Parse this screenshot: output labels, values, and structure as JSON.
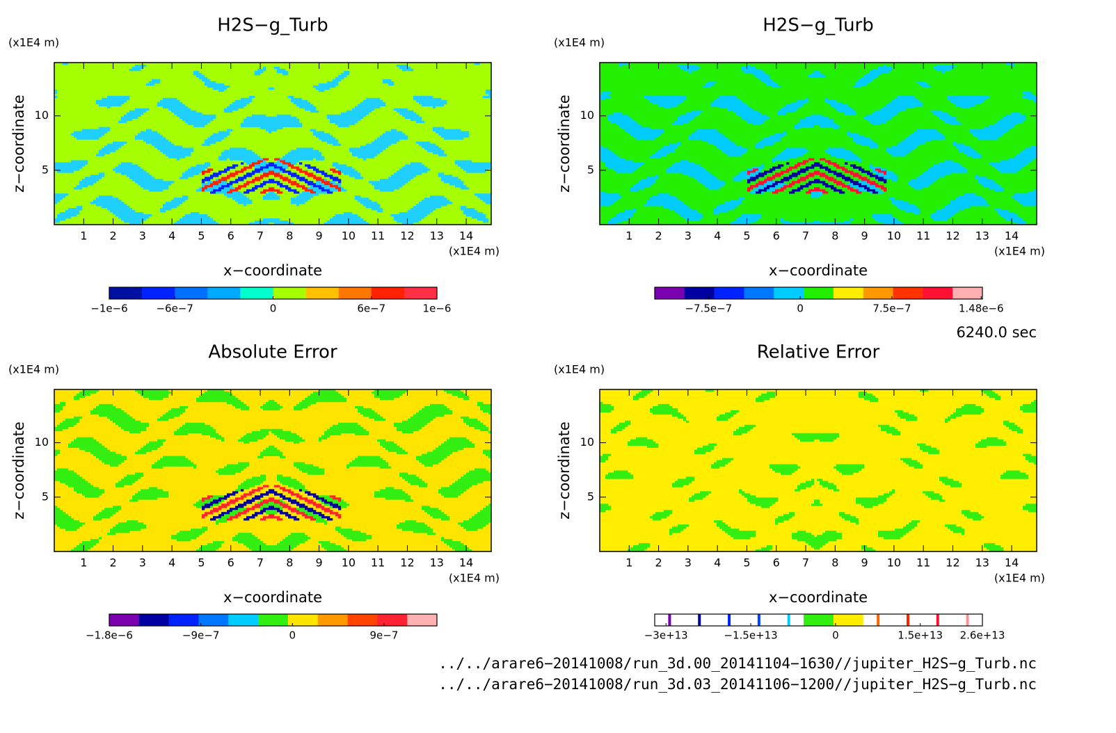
{
  "chart_data": [
    {
      "type": "contour",
      "title": "H2S−g_Turb",
      "xlabel": "x−coordinate",
      "ylabel": "z−coordinate",
      "xunit": "(x1E4 m)",
      "yunit": "(x1E4 m)",
      "xlim": [
        0,
        14.85
      ],
      "ylim": [
        0,
        14.9
      ],
      "xticks": [
        1,
        2,
        3,
        4,
        5,
        6,
        7,
        8,
        9,
        10,
        11,
        12,
        13,
        14
      ],
      "yticks": [
        5,
        10
      ],
      "background": "#a5ff00",
      "pattern": "#1fd0ff",
      "colorbar": {
        "lim": [
          -1e-06,
          1e-06
        ],
        "colors": [
          "#0010a0",
          "#0022ff",
          "#0070ff",
          "#00aaff",
          "#00ffcc",
          "#a5ff00",
          "#ffc000",
          "#ff7700",
          "#ff2200",
          "#ff3044"
        ],
        "ticks": [
          {
            "value": -1e-06,
            "label": "−1e−6"
          },
          {
            "value": -6e-07,
            "label": "−6e−7"
          },
          0,
          {
            "value": 6e-07,
            "label": "6e−7"
          },
          {
            "value": 1e-06,
            "label": "1e−6"
          }
        ]
      }
    },
    {
      "type": "contour",
      "title": "H2S−g_Turb",
      "xlabel": "x−coordinate",
      "ylabel": "z−coordinate",
      "xunit": "(x1E4 m)",
      "yunit": "(x1E4 m)",
      "xlim": [
        0,
        14.85
      ],
      "ylim": [
        0,
        14.9
      ],
      "xticks": [
        1,
        2,
        3,
        4,
        5,
        6,
        7,
        8,
        9,
        10,
        11,
        12,
        13,
        14
      ],
      "yticks": [
        5,
        10
      ],
      "background": "#22f000",
      "pattern": "#00ccff",
      "colorbar": {
        "lim": [
          -1.19e-06,
          1.49e-06
        ],
        "colors": [
          "#7a00b0",
          "#0000a0",
          "#0022ff",
          "#0077ff",
          "#00ccff",
          "#22ee00",
          "#ffee00",
          "#ff9900",
          "#ff3300",
          "#ff1133",
          "#ffb0b0"
        ],
        "ticks": [
          {
            "value": -7.5e-07,
            "label": "−7.5e−7"
          },
          0,
          {
            "value": 7.5e-07,
            "label": "7.5e−7"
          },
          {
            "value": 1.48e-06,
            "label": "1.48e−6"
          }
        ]
      }
    },
    {
      "type": "contour",
      "title": "Absolute Error",
      "xlabel": "x−coordinate",
      "ylabel": "z−coordinate",
      "xunit": "(x1E4 m)",
      "yunit": "(x1E4 m)",
      "xlim": [
        0,
        14.85
      ],
      "ylim": [
        0,
        14.9
      ],
      "xticks": [
        1,
        2,
        3,
        4,
        5,
        6,
        7,
        8,
        9,
        10,
        11,
        12,
        13,
        14
      ],
      "yticks": [
        5,
        10
      ],
      "background": "#ffe400",
      "pattern": "#33ee11",
      "colorbar": {
        "lim": [
          -1.8e-06,
          1.42e-06
        ],
        "colors": [
          "#7a00b0",
          "#0000a0",
          "#0022ff",
          "#0077ff",
          "#00ccff",
          "#33ee11",
          "#ffe400",
          "#ff9900",
          "#ff4400",
          "#ff2233",
          "#ffb0b0"
        ],
        "ticks": [
          {
            "value": -1.8e-06,
            "label": "−1.8e−6"
          },
          {
            "value": -9e-07,
            "label": "−9e−7"
          },
          0,
          {
            "value": 9e-07,
            "label": "9e−7"
          }
        ]
      }
    },
    {
      "type": "contour",
      "title": "Relative Error",
      "xlabel": "x−coordinate",
      "ylabel": "z−coordinate",
      "xunit": "(x1E4 m)",
      "yunit": "(x1E4 m)",
      "xlim": [
        0,
        14.85
      ],
      "ylim": [
        0,
        14.9
      ],
      "xticks": [
        1,
        2,
        3,
        4,
        5,
        6,
        7,
        8,
        9,
        10,
        11,
        12,
        13,
        14
      ],
      "yticks": [
        5,
        10
      ],
      "background": "#ffee00",
      "pattern": "#33ee11",
      "colorbar": {
        "lim": [
          -32000000000000.0,
          26000000000000.0
        ],
        "colors": [
          "#ffffff",
          "#ffffff",
          "#ffffff",
          "#ffffff",
          "#ffffff",
          "#33ee11",
          "#ffee00",
          "#ffffff",
          "#ffffff",
          "#ffffff",
          "#ffffff"
        ],
        "line_colors": [
          "#7a00b0",
          "#0000a0",
          "#0022ff",
          "#0044ff",
          "#00ccff",
          null,
          null,
          "#ff6600",
          "#ff2200",
          "#ff1133",
          "#ff9090"
        ],
        "ticks": [
          {
            "value": -30000000000000.0,
            "label": "−3e+13"
          },
          {
            "value": -15000000000000.0,
            "label": "−1.5e+13"
          },
          0,
          {
            "value": 15000000000000.0,
            "label": "1.5e+13"
          },
          {
            "value": 26000000000000.0,
            "label": "2.6e+13"
          }
        ]
      }
    }
  ],
  "time": "6240.0 sec",
  "files": [
    "../../arare6−20141008/run_3d.00_20141104−1630//jupiter_H2S−g_Turb.nc",
    "../../arare6−20141008/run_3d.03_20141106−1200//jupiter_H2S−g_Turb.nc"
  ]
}
